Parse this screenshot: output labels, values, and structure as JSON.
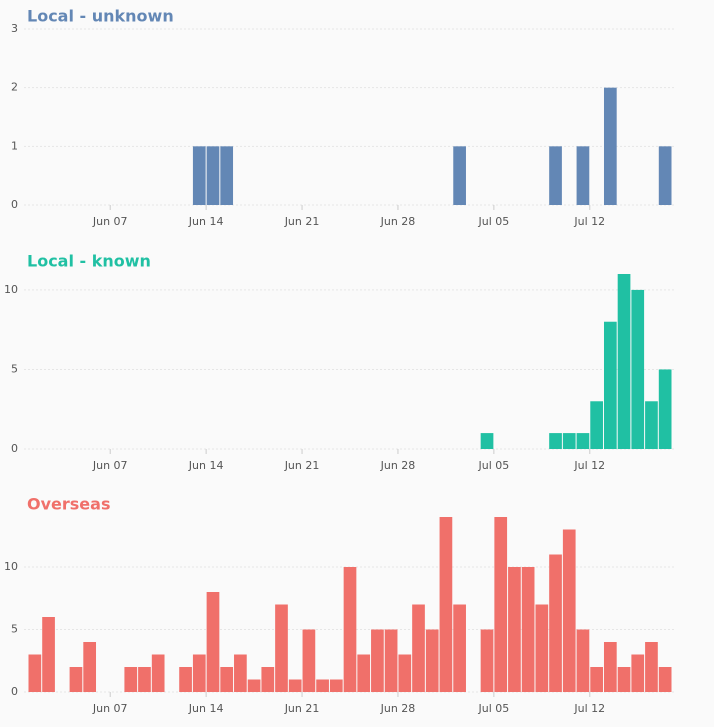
{
  "chart_data": [
    {
      "type": "bar",
      "title": "Local - unknown",
      "color": "#6387b5",
      "categories": [
        null,
        null,
        null,
        null,
        null,
        null,
        "Jun 07",
        null,
        null,
        null,
        null,
        null,
        null,
        "Jun 14",
        null,
        null,
        null,
        null,
        null,
        null,
        "Jun 21",
        null,
        null,
        null,
        null,
        null,
        null,
        "Jun 28",
        null,
        null,
        null,
        null,
        null,
        null,
        "Jul 05",
        null,
        null,
        null,
        null,
        null,
        null,
        "Jul 12",
        null,
        null,
        null,
        null,
        null
      ],
      "values": [
        0,
        0,
        0,
        0,
        0,
        0,
        0,
        0,
        0,
        0,
        0,
        0,
        1,
        1,
        1,
        0,
        0,
        0,
        0,
        0,
        0,
        0,
        0,
        0,
        0,
        0,
        0,
        0,
        0,
        0,
        0,
        1,
        0,
        0,
        0,
        0,
        0,
        0,
        1,
        0,
        1,
        0,
        2,
        0,
        0,
        0,
        1
      ],
      "ylim": [
        0,
        3
      ],
      "yticks": [
        0,
        1,
        2,
        3
      ],
      "grid": true
    },
    {
      "type": "bar",
      "title": "Local - known",
      "color": "#20c0a3",
      "categories": [
        null,
        null,
        null,
        null,
        null,
        null,
        "Jun 07",
        null,
        null,
        null,
        null,
        null,
        null,
        "Jun 14",
        null,
        null,
        null,
        null,
        null,
        null,
        "Jun 21",
        null,
        null,
        null,
        null,
        null,
        null,
        "Jun 28",
        null,
        null,
        null,
        null,
        null,
        null,
        "Jul 05",
        null,
        null,
        null,
        null,
        null,
        null,
        "Jul 12",
        null,
        null,
        null,
        null,
        null
      ],
      "values": [
        0,
        0,
        0,
        0,
        0,
        0,
        0,
        0,
        0,
        0,
        0,
        0,
        0,
        0,
        0,
        0,
        0,
        0,
        0,
        0,
        0,
        0,
        0,
        0,
        0,
        0,
        0,
        0,
        0,
        0,
        0,
        0,
        0,
        1,
        0,
        0,
        0,
        0,
        1,
        1,
        1,
        3,
        8,
        11,
        10,
        3,
        5
      ],
      "ylim": [
        0,
        11
      ],
      "yticks": [
        0,
        5,
        10
      ],
      "grid": true
    },
    {
      "type": "bar",
      "title": "Overseas",
      "color": "#f0706a",
      "categories": [
        null,
        null,
        null,
        null,
        null,
        null,
        "Jun 07",
        null,
        null,
        null,
        null,
        null,
        null,
        "Jun 14",
        null,
        null,
        null,
        null,
        null,
        null,
        "Jun 21",
        null,
        null,
        null,
        null,
        null,
        null,
        "Jun 28",
        null,
        null,
        null,
        null,
        null,
        null,
        "Jul 05",
        null,
        null,
        null,
        null,
        null,
        null,
        "Jul 12",
        null,
        null,
        null,
        null,
        null
      ],
      "values": [
        3,
        6,
        0,
        2,
        4,
        0,
        0,
        2,
        2,
        3,
        0,
        2,
        3,
        8,
        2,
        3,
        1,
        2,
        7,
        1,
        5,
        1,
        1,
        10,
        3,
        5,
        5,
        3,
        7,
        5,
        14,
        7,
        0,
        5,
        14,
        10,
        10,
        7,
        11,
        13,
        5,
        2,
        4,
        2,
        3,
        4,
        2
      ],
      "ylim": [
        0,
        14
      ],
      "yticks": [
        0,
        5,
        10
      ],
      "grid": true
    }
  ]
}
